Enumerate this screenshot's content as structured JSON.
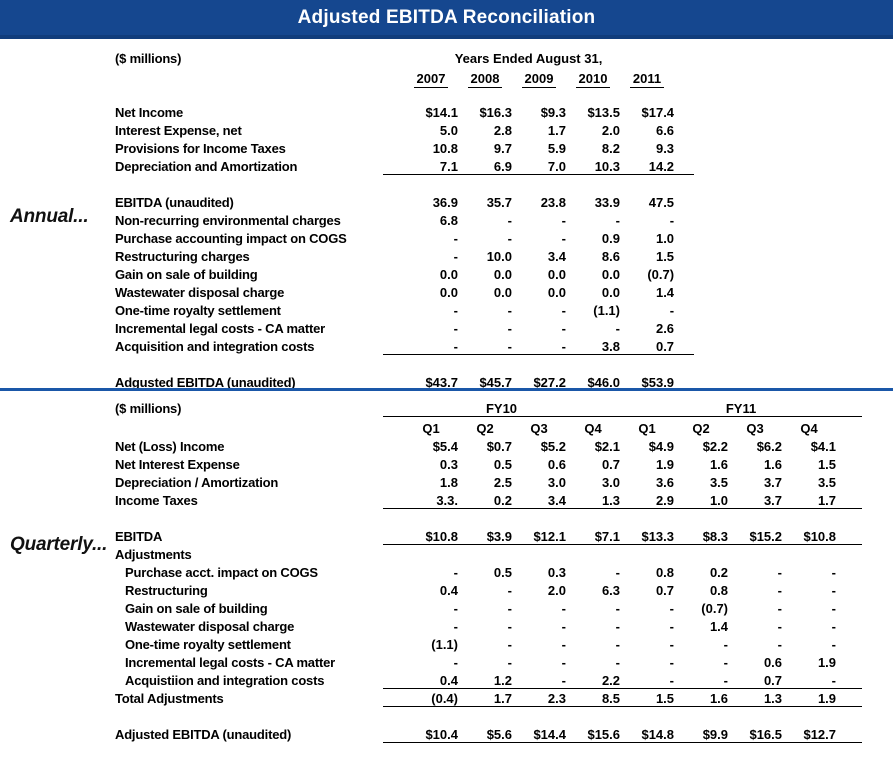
{
  "title": "Adjusted EBITDA Reconciliation",
  "colors": {
    "banner_blue": "#15478F",
    "banner_edge": "#113d7c",
    "divider_blue": "#1a57a8"
  },
  "annual": {
    "side_label": "Annual...",
    "units_label": "($ millions)",
    "period_header": "Years Ended August 31,",
    "years": [
      "2007",
      "2008",
      "2009",
      "2010",
      "2011"
    ],
    "rows": [
      {
        "label": "Net Income",
        "values": [
          "$14.1",
          "$16.3",
          "$9.3",
          "$13.5",
          "$17.4"
        ]
      },
      {
        "label": "Interest Expense, net",
        "values": [
          "5.0",
          "2.8",
          "1.7",
          "2.0",
          "6.6"
        ]
      },
      {
        "label": "Provisions for Income Taxes",
        "values": [
          "10.8",
          "9.7",
          "5.9",
          "8.2",
          "9.3"
        ]
      },
      {
        "label": "Depreciation and Amortization",
        "values": [
          "7.1",
          "6.9",
          "7.0",
          "10.3",
          "14.2"
        ],
        "underline": true
      },
      {
        "type": "spacer"
      },
      {
        "label": "EBITDA (unaudited)",
        "values": [
          "36.9",
          "35.7",
          "23.8",
          "33.9",
          "47.5"
        ]
      },
      {
        "label": "Non-recurring environmental charges",
        "values": [
          "6.8",
          "-",
          "-",
          "-",
          "-"
        ]
      },
      {
        "label": "Purchase accounting impact on COGS",
        "values": [
          "-",
          "-",
          "-",
          "0.9",
          "1.0"
        ]
      },
      {
        "label": "Restructuring charges",
        "values": [
          "-",
          "10.0",
          "3.4",
          "8.6",
          "1.5"
        ]
      },
      {
        "label": "Gain on sale of building",
        "values": [
          "0.0",
          "0.0",
          "0.0",
          "0.0",
          "(0.7)"
        ]
      },
      {
        "label": "Wastewater disposal charge",
        "values": [
          "0.0",
          "0.0",
          "0.0",
          "0.0",
          "1.4"
        ]
      },
      {
        "label": "One-time royalty settlement",
        "values": [
          "-",
          "-",
          "-",
          "(1.1)",
          "-"
        ]
      },
      {
        "label": "Incremental legal costs - CA matter",
        "values": [
          "-",
          "-",
          "-",
          "-",
          "2.6"
        ]
      },
      {
        "label": "Acquisition and integration costs",
        "values": [
          "-",
          "-",
          "-",
          "3.8",
          "0.7"
        ],
        "underline": true
      },
      {
        "type": "spacer"
      },
      {
        "label": "Adgusted EBITDA (unaudited)",
        "values": [
          "$43.7",
          "$45.7",
          "$27.2",
          "$46.0",
          "$53.9"
        ]
      }
    ]
  },
  "quarterly": {
    "side_label": "Quarterly...",
    "units_label": "($ millions)",
    "fiscal_years": [
      "FY10",
      "FY11"
    ],
    "quarters": [
      "Q1",
      "Q2",
      "Q3",
      "Q4",
      "Q1",
      "Q2",
      "Q3",
      "Q4"
    ],
    "rows": [
      {
        "label": "Net (Loss) Income",
        "values": [
          "$5.4",
          "$0.7",
          "$5.2",
          "$2.1",
          "$4.9",
          "$2.2",
          "$6.2",
          "$4.1"
        ]
      },
      {
        "label": "Net Interest Expense",
        "values": [
          "0.3",
          "0.5",
          "0.6",
          "0.7",
          "1.9",
          "1.6",
          "1.6",
          "1.5"
        ]
      },
      {
        "label": "Depreciation / Amortization",
        "values": [
          "1.8",
          "2.5",
          "3.0",
          "3.0",
          "3.6",
          "3.5",
          "3.7",
          "3.5"
        ]
      },
      {
        "label": "Income Taxes",
        "values": [
          "3.3.",
          "0.2",
          "3.4",
          "1.3",
          "2.9",
          "1.0",
          "3.7",
          "1.7"
        ],
        "underline": true
      },
      {
        "type": "spacer"
      },
      {
        "label": "EBITDA",
        "values": [
          "$10.8",
          "$3.9",
          "$12.1",
          "$7.1",
          "$13.3",
          "$8.3",
          "$15.2",
          "$10.8"
        ],
        "underline": true
      },
      {
        "label": "Adjustments",
        "values": []
      },
      {
        "label": "Purchase acct. impact on COGS",
        "indent": true,
        "values": [
          "-",
          "0.5",
          "0.3",
          "-",
          "0.8",
          "0.2",
          "-",
          "-"
        ]
      },
      {
        "label": "Restructuring",
        "indent": true,
        "values": [
          "0.4",
          "-",
          "2.0",
          "6.3",
          "0.7",
          "0.8",
          "-",
          "-"
        ]
      },
      {
        "label": "Gain on sale of building",
        "indent": true,
        "values": [
          "-",
          "-",
          "-",
          "-",
          "-",
          "(0.7)",
          "-",
          "-"
        ]
      },
      {
        "label": "Wastewater disposal charge",
        "indent": true,
        "values": [
          "-",
          "-",
          "-",
          "-",
          "-",
          "1.4",
          "-",
          "-"
        ]
      },
      {
        "label": "One-time royalty settlement",
        "indent": true,
        "values": [
          "(1.1)",
          "-",
          "-",
          "-",
          "-",
          "-",
          "-",
          "-"
        ]
      },
      {
        "label": "Incremental legal costs - CA matter",
        "indent": true,
        "values": [
          "-",
          "-",
          "-",
          "-",
          "-",
          "-",
          "0.6",
          "1.9"
        ]
      },
      {
        "label": "Acquistiion and integration costs",
        "indent": true,
        "values": [
          "0.4",
          "1.2",
          "-",
          "2.2",
          "-",
          "-",
          "0.7",
          "-"
        ],
        "underline": true
      },
      {
        "label": "Total Adjustments",
        "values": [
          "(0.4)",
          "1.7",
          "2.3",
          "8.5",
          "1.5",
          "1.6",
          "1.3",
          "1.9"
        ],
        "underline": true
      },
      {
        "type": "spacer"
      },
      {
        "label": "Adjusted EBITDA (unaudited)",
        "values": [
          "$10.4",
          "$5.6",
          "$14.4",
          "$15.6",
          "$14.8",
          "$9.9",
          "$16.5",
          "$12.7"
        ],
        "underline": true
      }
    ]
  }
}
